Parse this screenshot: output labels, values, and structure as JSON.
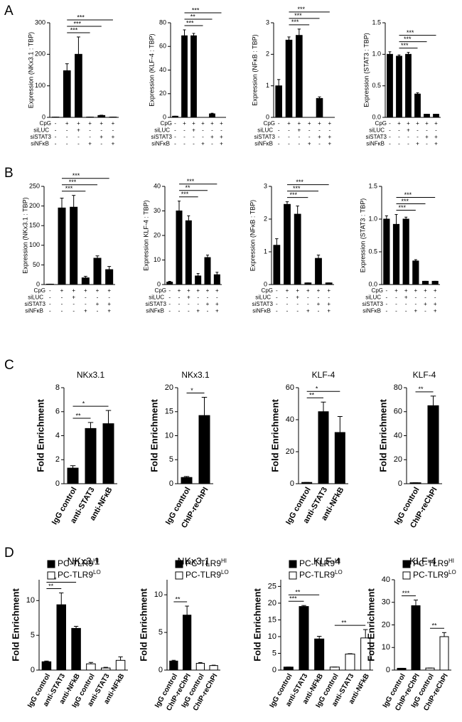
{
  "panel_labels": [
    "A",
    "B",
    "C",
    "D"
  ],
  "chart_data": [
    {
      "type": "bar",
      "ylabel": "Expression (NKx3.1 : TBP)",
      "color": "#000000",
      "values": [
        1,
        148,
        200,
        1,
        6,
        1
      ],
      "errors": [
        0,
        22,
        55,
        0,
        1,
        0
      ],
      "ylim": [
        0,
        300
      ],
      "yticks": [
        0,
        100,
        200,
        300
      ],
      "conditions": [
        {
          "name": "CpG",
          "marks": [
            "-",
            "+",
            "+",
            "+",
            "+",
            "+"
          ]
        },
        {
          "name": "siLUC",
          "marks": [
            "-",
            "-",
            "+",
            "-",
            "-",
            "-"
          ]
        },
        {
          "name": "siSTAT3",
          "marks": [
            "-",
            "-",
            "-",
            "-",
            "+",
            "+"
          ]
        },
        {
          "name": "siNFκB",
          "marks": [
            "-",
            "-",
            "-",
            "+",
            "-",
            "+"
          ]
        }
      ],
      "brackets": [
        {
          "from": 1,
          "to": 3,
          "label": "***"
        },
        {
          "from": 1,
          "to": 4,
          "label": "***"
        },
        {
          "from": 1,
          "to": 5,
          "label": "***"
        }
      ]
    },
    {
      "type": "bar",
      "ylabel": "Expression (KLF-4 : TBP)",
      "color": "#000000",
      "values": [
        1,
        69,
        69,
        0,
        3,
        0
      ],
      "errors": [
        0,
        5,
        2,
        0,
        0.5,
        0
      ],
      "ylim": [
        0,
        80
      ],
      "yticks": [
        0,
        20,
        40,
        60,
        80
      ],
      "conditions": [
        {
          "name": "CpG",
          "marks": [
            "-",
            "+",
            "+",
            "+",
            "+",
            "+"
          ]
        },
        {
          "name": "siLUC",
          "marks": [
            "-",
            "-",
            "+",
            "-",
            "-",
            "-"
          ]
        },
        {
          "name": "siSTAT3",
          "marks": [
            "-",
            "-",
            "-",
            "-",
            "+",
            "+"
          ]
        },
        {
          "name": "siNFκB",
          "marks": [
            "-",
            "-",
            "-",
            "+",
            "-",
            "+"
          ]
        }
      ],
      "brackets": [
        {
          "from": 1,
          "to": 3,
          "label": "***"
        },
        {
          "from": 1,
          "to": 4,
          "label": "**"
        },
        {
          "from": 1,
          "to": 5,
          "label": "***"
        }
      ]
    },
    {
      "type": "bar",
      "ylabel": "Expression (NFκB : TBP)",
      "color": "#000000",
      "values": [
        1.0,
        2.45,
        2.6,
        0,
        0.6,
        0
      ],
      "errors": [
        0.2,
        0.1,
        0.2,
        0,
        0.05,
        0
      ],
      "ylim": [
        0,
        3
      ],
      "yticks": [
        0,
        1,
        2,
        3
      ],
      "conditions": [
        {
          "name": "CpG",
          "marks": [
            "-",
            "+",
            "+",
            "+",
            "+",
            "+"
          ]
        },
        {
          "name": "siLUC",
          "marks": [
            "-",
            "-",
            "+",
            "-",
            "-",
            "-"
          ]
        },
        {
          "name": "siSTAT3",
          "marks": [
            "-",
            "-",
            "-",
            "-",
            "+",
            "+"
          ]
        },
        {
          "name": "siNFκB",
          "marks": [
            "-",
            "-",
            "-",
            "+",
            "-",
            "+"
          ]
        }
      ],
      "brackets": [
        {
          "from": 1,
          "to": 3,
          "label": "***"
        },
        {
          "from": 1,
          "to": 4,
          "label": "***"
        },
        {
          "from": 1,
          "to": 5,
          "label": "***"
        }
      ]
    },
    {
      "type": "bar",
      "ylabel": "Expression (STAT3 : TBP)",
      "color": "#000000",
      "values": [
        1.0,
        0.97,
        1.0,
        0.37,
        0.05,
        0.05
      ],
      "errors": [
        0.04,
        0.02,
        0.03,
        0.02,
        0,
        0
      ],
      "ylim": [
        0,
        1.5
      ],
      "yticks": [
        {
          "value": 0,
          "label": "0.0"
        },
        {
          "value": 0.5,
          "label": "0.5"
        },
        {
          "value": 1,
          "label": "1.0"
        },
        {
          "value": 1.5,
          "label": "1.5"
        }
      ],
      "conditions": [
        {
          "name": "CpG",
          "marks": [
            "-",
            "+",
            "+",
            "+",
            "+",
            "+"
          ]
        },
        {
          "name": "siLUC",
          "marks": [
            "-",
            "-",
            "+",
            "-",
            "-",
            "-"
          ]
        },
        {
          "name": "siSTAT3",
          "marks": [
            "-",
            "-",
            "-",
            "-",
            "+",
            "+"
          ]
        },
        {
          "name": "siNFκB",
          "marks": [
            "-",
            "-",
            "-",
            "+",
            "-",
            "+"
          ]
        }
      ],
      "brackets": [
        {
          "from": 1,
          "to": 3,
          "label": "***"
        },
        {
          "from": 1,
          "to": 4,
          "label": "***"
        },
        {
          "from": 1,
          "to": 5,
          "label": "***"
        }
      ]
    },
    {
      "type": "bar",
      "ylabel": "Expression (NKx3.1 : TBP)",
      "color": "#000000",
      "values": [
        1,
        195,
        197,
        17,
        67,
        38
      ],
      "errors": [
        0,
        25,
        30,
        4,
        6,
        8
      ],
      "ylim": [
        0,
        250
      ],
      "yticks": [
        0,
        50,
        100,
        150,
        200,
        250
      ],
      "conditions": [
        {
          "name": "CpG",
          "marks": [
            "-",
            "+",
            "+",
            "+",
            "+",
            "+"
          ]
        },
        {
          "name": "siLUC",
          "marks": [
            "-",
            "-",
            "+",
            "-",
            "-",
            "-"
          ]
        },
        {
          "name": "siSTAT3",
          "marks": [
            "-",
            "-",
            "-",
            "-",
            "+",
            "+"
          ]
        },
        {
          "name": "siNFκB",
          "marks": [
            "-",
            "-",
            "-",
            "+",
            "-",
            "+"
          ]
        }
      ],
      "brackets": [
        {
          "from": 1,
          "to": 3,
          "label": "***"
        },
        {
          "from": 1,
          "to": 4,
          "label": "***"
        },
        {
          "from": 1,
          "to": 5,
          "label": "***"
        }
      ]
    },
    {
      "type": "bar",
      "ylabel": "Expression KLF-4 : TBP)",
      "color": "#000000",
      "values": [
        1,
        30,
        26,
        3.5,
        11,
        4
      ],
      "errors": [
        0.3,
        4,
        2,
        1,
        1,
        1
      ],
      "ylim": [
        0,
        40
      ],
      "yticks": [
        0,
        10,
        20,
        30,
        40
      ],
      "conditions": [
        {
          "name": "CpG",
          "marks": [
            "-",
            "+",
            "+",
            "+",
            "+",
            "+"
          ]
        },
        {
          "name": "siLUC",
          "marks": [
            "-",
            "-",
            "+",
            "-",
            "-",
            "-"
          ]
        },
        {
          "name": "siSTAT3",
          "marks": [
            "-",
            "-",
            "-",
            "-",
            "+",
            "+"
          ]
        },
        {
          "name": "siNFκB",
          "marks": [
            "-",
            "-",
            "-",
            "+",
            "-",
            "+"
          ]
        }
      ],
      "brackets": [
        {
          "from": 1,
          "to": 3,
          "label": "***"
        },
        {
          "from": 1,
          "to": 4,
          "label": "**"
        },
        {
          "from": 1,
          "to": 5,
          "label": "***"
        }
      ]
    },
    {
      "type": "bar",
      "ylabel": "Expression (NFκB : TBP)",
      "color": "#000000",
      "values": [
        1.2,
        2.45,
        2.15,
        0.05,
        0.8,
        0.05
      ],
      "errors": [
        0.2,
        0.08,
        0.25,
        0,
        0.1,
        0
      ],
      "ylim": [
        0,
        3
      ],
      "yticks": [
        0,
        1,
        2,
        3
      ],
      "conditions": [
        {
          "name": "CpG",
          "marks": [
            "-",
            "+",
            "+",
            "+",
            "+",
            "+"
          ]
        },
        {
          "name": "siLUC",
          "marks": [
            "-",
            "-",
            "+",
            "-",
            "-",
            "-"
          ]
        },
        {
          "name": "siSTAT3",
          "marks": [
            "-",
            "-",
            "-",
            "-",
            "+",
            "+"
          ]
        },
        {
          "name": "siNFκB",
          "marks": [
            "-",
            "-",
            "-",
            "+",
            "-",
            "+"
          ]
        }
      ],
      "brackets": [
        {
          "from": 1,
          "to": 3,
          "label": "***"
        },
        {
          "from": 1,
          "to": 4,
          "label": "***"
        },
        {
          "from": 1,
          "to": 5,
          "label": "***"
        }
      ]
    },
    {
      "type": "bar",
      "ylabel": "Expression (STAT3 : TBP)",
      "color": "#000000",
      "values": [
        1.0,
        0.92,
        1.0,
        0.36,
        0.05,
        0.05
      ],
      "errors": [
        0.05,
        0.15,
        0.03,
        0.02,
        0,
        0
      ],
      "ylim": [
        0,
        1.5
      ],
      "yticks": [
        {
          "value": 0,
          "label": "0.0"
        },
        {
          "value": 0.5,
          "label": "0.5"
        },
        {
          "value": 1,
          "label": "1.0"
        },
        {
          "value": 1.5,
          "label": "1.5"
        }
      ],
      "conditions": [
        {
          "name": "CpG",
          "marks": [
            "-",
            "+",
            "+",
            "+",
            "+",
            "+"
          ]
        },
        {
          "name": "siLUC",
          "marks": [
            "-",
            "-",
            "+",
            "-",
            "-",
            "-"
          ]
        },
        {
          "name": "siSTAT3",
          "marks": [
            "-",
            "-",
            "-",
            "-",
            "+",
            "+"
          ]
        },
        {
          "name": "siNFκB",
          "marks": [
            "-",
            "-",
            "-",
            "+",
            "-",
            "+"
          ]
        }
      ],
      "brackets": [
        {
          "from": 1,
          "to": 3,
          "label": "***"
        },
        {
          "from": 1,
          "to": 4,
          "label": "***"
        },
        {
          "from": 1,
          "to": 5,
          "label": "***"
        }
      ]
    },
    {
      "type": "bar",
      "title": "NKx3.1",
      "ylabel": "Fold Enrichment",
      "color": "#000000",
      "categories": [
        "IgG control",
        "anti-STAT3",
        "anti-NFκB"
      ],
      "values": [
        1.3,
        4.6,
        5.0
      ],
      "errors": [
        0.2,
        0.5,
        1.1
      ],
      "ylim": [
        0,
        8
      ],
      "yticks": [
        0,
        2,
        4,
        6,
        8
      ],
      "brackets": [
        {
          "from": 0,
          "to": 1,
          "label": "**"
        },
        {
          "from": 0,
          "to": 2,
          "label": "*"
        }
      ]
    },
    {
      "type": "bar",
      "title": "NKx3.1",
      "ylabel": "Fold Enrichment",
      "color": "#000000",
      "categories": [
        "IgG control",
        "ChIP-reChPI"
      ],
      "values": [
        1.3,
        14.2
      ],
      "errors": [
        0.2,
        3.8
      ],
      "ylim": [
        0,
        20
      ],
      "yticks": [
        0,
        5,
        10,
        15,
        20
      ],
      "brackets": [
        {
          "from": 0,
          "to": 1,
          "label": "*"
        }
      ]
    },
    {
      "type": "bar",
      "title": "KLF-4",
      "ylabel": "Fold Enrichment",
      "color": "#000000",
      "categories": [
        "IgG control",
        "anti-STAT3",
        "anti-NFkB"
      ],
      "values": [
        0.8,
        45,
        32
      ],
      "errors": [
        0,
        6,
        10
      ],
      "ylim": [
        0,
        60
      ],
      "yticks": [
        0,
        20,
        40,
        60
      ],
      "brackets": [
        {
          "from": 0,
          "to": 1,
          "label": "**"
        },
        {
          "from": 0,
          "to": 2,
          "label": "*"
        }
      ]
    },
    {
      "type": "bar",
      "title": "KLF-4",
      "ylabel": "Fold Enrichment",
      "color": "#000000",
      "categories": [
        "IgG control",
        "ChIP-reChPI"
      ],
      "values": [
        0.8,
        65
      ],
      "errors": [
        0,
        8
      ],
      "ylim": [
        0,
        80
      ],
      "yticks": [
        0,
        20,
        40,
        60,
        80
      ],
      "brackets": [
        {
          "from": 0,
          "to": 1,
          "label": "**"
        }
      ]
    },
    {
      "type": "grouped_bar",
      "title": "NKx3.1",
      "ylabel": "Fold Enrichment",
      "categories": [
        "IgG control",
        "anti-STAT3",
        "anti-NFkB",
        "IgG control",
        "anti-STAT3",
        "anti-NFkB"
      ],
      "ylim": [
        0,
        13
      ],
      "yticks": [
        0,
        5,
        10
      ],
      "series": [
        {
          "name": "PC-TLR9",
          "name_sup": "HI",
          "color": "#000000",
          "values": [
            1.2,
            9.4,
            6.0,
            null,
            null,
            null
          ],
          "errors": [
            0.1,
            1.7,
            0.3,
            null,
            null,
            null
          ]
        },
        {
          "name": "PC-TLR9",
          "name_sup": "LO",
          "color": "#ffffff",
          "values": [
            null,
            null,
            null,
            0.9,
            0.3,
            1.4
          ],
          "errors": [
            null,
            null,
            null,
            0.2,
            0.1,
            0.5
          ]
        }
      ],
      "brackets": [
        {
          "from": 0,
          "to": 1,
          "label": "**"
        },
        {
          "from": 0,
          "to": 2,
          "label": "*"
        }
      ]
    },
    {
      "type": "grouped_bar",
      "title": "NKx3.1",
      "ylabel": "Fold Enrichment",
      "categories": [
        "IgG control",
        "ChIP-reChPI",
        "IgG control",
        "ChIP-reChPI"
      ],
      "ylim": [
        0,
        12
      ],
      "yticks": [
        0,
        5,
        10
      ],
      "series": [
        {
          "name": "PC-TLR9",
          "name_sup": "HI",
          "color": "#000000",
          "values": [
            1.2,
            7.3,
            null,
            null
          ],
          "errors": [
            0.1,
            1.2,
            null,
            null
          ]
        },
        {
          "name": "PC-TLR9",
          "name_sup": "LO",
          "color": "#ffffff",
          "values": [
            null,
            null,
            0.9,
            0.6
          ],
          "errors": [
            null,
            null,
            0.1,
            0.05
          ]
        }
      ],
      "brackets": [
        {
          "from": 0,
          "to": 1,
          "label": "**"
        }
      ]
    },
    {
      "type": "grouped_bar",
      "title": "KLF-4",
      "ylabel": "Fold Enrichment",
      "categories": [
        "IgG control",
        "anti-STAT3",
        "anti-NFkB",
        "IgG control",
        "anti-STAT3",
        "anti-NFkB"
      ],
      "ylim": [
        0,
        27
      ],
      "yticks": [
        0,
        5,
        10,
        15,
        20,
        25
      ],
      "series": [
        {
          "name": "PC-TLR9",
          "name_sup": "HI",
          "color": "#000000",
          "values": [
            0.9,
            19,
            9.3,
            null,
            null,
            null
          ],
          "errors": [
            0,
            0.3,
            0.8,
            null,
            null,
            null
          ]
        },
        {
          "name": "PC-TLR9",
          "name_sup": "LO",
          "color": "#ffffff",
          "values": [
            null,
            null,
            null,
            0.9,
            4.8,
            9.6
          ],
          "errors": [
            null,
            null,
            null,
            0,
            0.1,
            2.5
          ]
        }
      ],
      "brackets": [
        {
          "from": 0,
          "to": 1,
          "label": "***"
        },
        {
          "from": 0,
          "to": 2,
          "label": "**"
        },
        {
          "from": 3,
          "to": 5,
          "label": "**"
        }
      ]
    },
    {
      "type": "grouped_bar",
      "title": "KLF-4",
      "ylabel": "Fold Enrichment",
      "categories": [
        "IgG control",
        "ChIP-reChPI",
        "IgG control",
        "ChIP-reChPI"
      ],
      "ylim": [
        0,
        40
      ],
      "yticks": [
        0,
        10,
        20,
        30,
        40
      ],
      "series": [
        {
          "name": "PC-TLR9",
          "name_sup": "HI",
          "color": "#000000",
          "values": [
            0.8,
            28.5,
            null,
            null
          ],
          "errors": [
            0,
            2.5,
            null,
            null
          ]
        },
        {
          "name": "PC-TLR9",
          "name_sup": "LO",
          "color": "#ffffff",
          "values": [
            null,
            null,
            0.9,
            14.8
          ],
          "errors": [
            null,
            null,
            0,
            1.8
          ]
        }
      ],
      "brackets": [
        {
          "from": 0,
          "to": 1,
          "label": "***"
        },
        {
          "from": 2,
          "to": 3,
          "label": "**"
        }
      ]
    }
  ]
}
